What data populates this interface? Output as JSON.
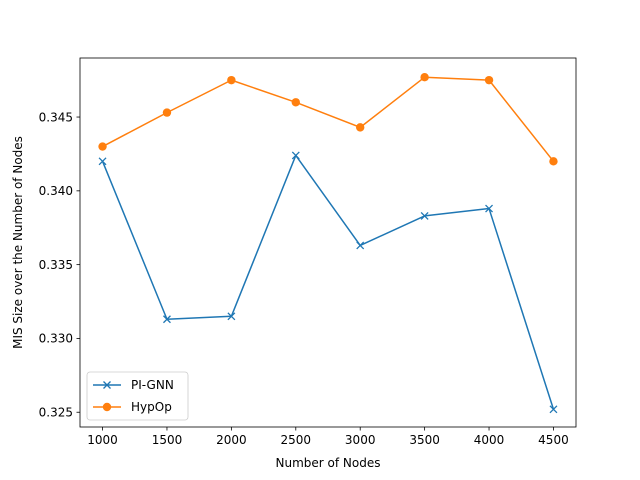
{
  "chart_data": {
    "type": "line",
    "title": "",
    "xlabel": "Number of Nodes",
    "ylabel": "MIS Size over the Number of Nodes",
    "x": [
      1000,
      1500,
      2000,
      2500,
      3000,
      3500,
      4000,
      4500
    ],
    "xlim": [
      825,
      4675
    ],
    "ylim": [
      0.324,
      0.349
    ],
    "xticks": [
      "1000",
      "1500",
      "2000",
      "2500",
      "3000",
      "3500",
      "4000",
      "4500"
    ],
    "yticks": [
      "0.325",
      "0.330",
      "0.335",
      "0.340",
      "0.345"
    ],
    "grid": false,
    "legend_position": "lower-left",
    "series": [
      {
        "name": "PI-GNN",
        "color": "#1f77b4",
        "marker": "x",
        "values": [
          0.342,
          0.3313,
          0.3315,
          0.3424,
          0.3363,
          0.3383,
          0.3388,
          0.3252
        ]
      },
      {
        "name": "HypOp",
        "color": "#ff7f0e",
        "marker": "circle",
        "values": [
          0.343,
          0.3453,
          0.3475,
          0.346,
          0.3443,
          0.3477,
          0.3475,
          0.342
        ]
      }
    ]
  }
}
